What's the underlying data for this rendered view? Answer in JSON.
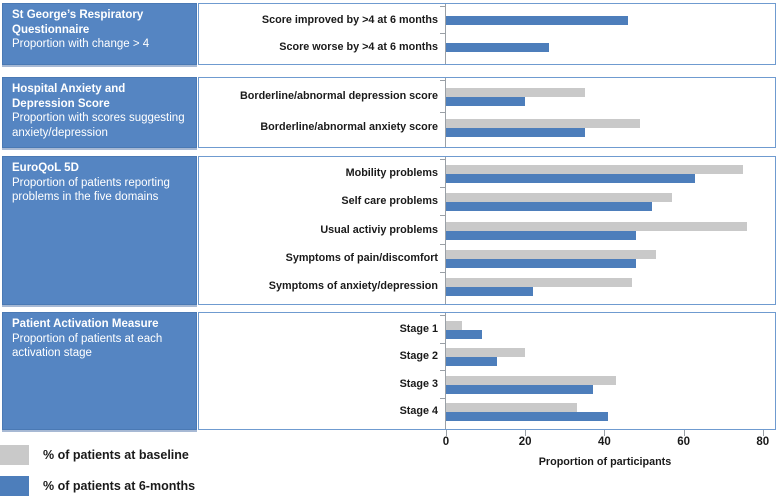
{
  "legend": {
    "baseline_label": "% of patients at baseline",
    "followup_label": "% of patients at 6-months"
  },
  "axis": {
    "label": "Proportion of participants",
    "ticks": [
      0,
      20,
      40,
      60,
      80
    ],
    "max": 80
  },
  "colors": {
    "baseline_bar": "#c9c9c9",
    "followup_bar": "#4d7ebb",
    "panel_background": "#5585c2",
    "box_border": "#6f9bd0"
  },
  "chart_data": {
    "type": "bar",
    "orientation": "horizontal",
    "xlabel": "Proportion of participants",
    "xlim": [
      0,
      80
    ],
    "xticks": [
      0,
      20,
      40,
      60,
      80
    ],
    "series_names": [
      "% of patients at baseline",
      "% of patients at 6-months"
    ],
    "panels": [
      {
        "title": "St George’s Respiratory Questionnaire",
        "subtitle": "Proportion with change > 4",
        "rows": [
          {
            "label": "Score improved by >4  at 6 months",
            "baseline": null,
            "six_months": 46
          },
          {
            "label": "Score worse by >4  at 6 months",
            "baseline": null,
            "six_months": 26
          }
        ]
      },
      {
        "title": "Hospital Anxiety and Depression Score",
        "subtitle": "Proportion with scores suggesting anxiety/depression",
        "rows": [
          {
            "label": "Borderline/abnormal depression score",
            "baseline": 35,
            "six_months": 20
          },
          {
            "label": "Borderline/abnormal anxiety score",
            "baseline": 49,
            "six_months": 35
          }
        ]
      },
      {
        "title": "EuroQoL 5D",
        "subtitle": "Proportion of patients reporting problems in the five domains",
        "rows": [
          {
            "label": "Mobility problems",
            "baseline": 75,
            "six_months": 63
          },
          {
            "label": "Self care problems",
            "baseline": 57,
            "six_months": 52
          },
          {
            "label": "Usual activiy problems",
            "baseline": 76,
            "six_months": 48
          },
          {
            "label": "Symptoms of pain/discomfort",
            "baseline": 53,
            "six_months": 48
          },
          {
            "label": "Symptoms of anxiety/depression",
            "baseline": 47,
            "six_months": 22
          }
        ]
      },
      {
        "title": "Patient Activation Measure",
        "subtitle": "Proportion of patients at each activation stage",
        "rows": [
          {
            "label": "Stage 1",
            "baseline": 4,
            "six_months": 9
          },
          {
            "label": "Stage 2",
            "baseline": 20,
            "six_months": 13
          },
          {
            "label": "Stage 3",
            "baseline": 43,
            "six_months": 37
          },
          {
            "label": "Stage 4",
            "baseline": 33,
            "six_months": 41
          }
        ]
      }
    ]
  }
}
